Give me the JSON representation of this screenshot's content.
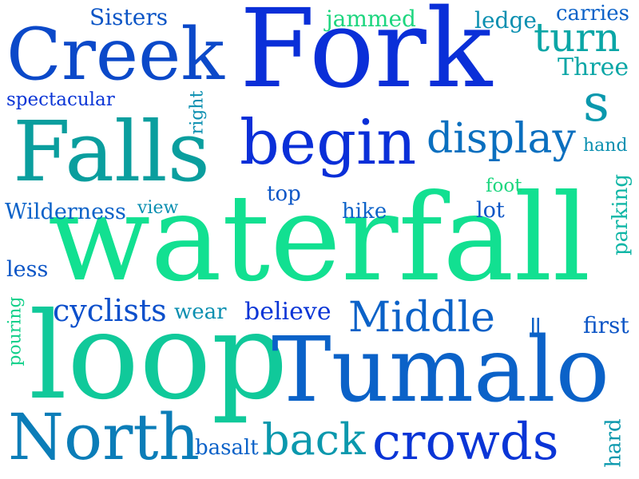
{
  "words": [
    {
      "id": "fork",
      "text": "Fork",
      "color": "#0a2fd8"
    },
    {
      "id": "creek",
      "text": "Creek",
      "color": "#0b49c9"
    },
    {
      "id": "falls",
      "text": "Falls",
      "color": "#0a9e9e"
    },
    {
      "id": "begin",
      "text": "begin",
      "color": "#0a2fd8"
    },
    {
      "id": "display",
      "text": "display",
      "color": "#0a6fbf"
    },
    {
      "id": "waterfall",
      "text": "waterfall",
      "color": "#12e091"
    },
    {
      "id": "loop",
      "text": "loop",
      "color": "#10c99a"
    },
    {
      "id": "tumalo",
      "text": "Tumalo",
      "color": "#0b62c8"
    },
    {
      "id": "north",
      "text": "North",
      "color": "#0b7db8"
    },
    {
      "id": "crowds",
      "text": "crowds",
      "color": "#0a35d6"
    },
    {
      "id": "back",
      "text": "back",
      "color": "#0a98ad"
    },
    {
      "id": "middle",
      "text": "Middle",
      "color": "#0b62c8"
    },
    {
      "id": "cyclists",
      "text": "cyclists",
      "color": "#0b4fcb"
    },
    {
      "id": "turn",
      "text": "turn",
      "color": "#0aa6a6"
    },
    {
      "id": "s",
      "text": "s",
      "color": "#0a98ad"
    },
    {
      "id": "sisters",
      "text": "Sisters",
      "color": "#0b55c6"
    },
    {
      "id": "jammed",
      "text": "jammed",
      "color": "#1dd67f"
    },
    {
      "id": "ledge",
      "text": "ledge",
      "color": "#0a8fb0"
    },
    {
      "id": "carries",
      "text": "carries",
      "color": "#0b62c8"
    },
    {
      "id": "three",
      "text": "Three",
      "color": "#0aa6a6"
    },
    {
      "id": "spectacular",
      "text": "spectacular",
      "color": "#0a35d6"
    },
    {
      "id": "right",
      "text": "right",
      "color": "#0a8fb0"
    },
    {
      "id": "hand",
      "text": "hand",
      "color": "#0a8fb0"
    },
    {
      "id": "foot",
      "text": "foot",
      "color": "#1dd67f"
    },
    {
      "id": "top",
      "text": "top",
      "color": "#0b55c6"
    },
    {
      "id": "lot",
      "text": "lot",
      "color": "#0b55c6"
    },
    {
      "id": "parking",
      "text": "parking",
      "color": "#10b6a6"
    },
    {
      "id": "wilderness",
      "text": "Wilderness",
      "color": "#0b62c8"
    },
    {
      "id": "view",
      "text": "view",
      "color": "#0a8fb0"
    },
    {
      "id": "hike",
      "text": "hike",
      "color": "#0b62c8"
    },
    {
      "id": "less",
      "text": "less",
      "color": "#0b55c6"
    },
    {
      "id": "wear",
      "text": "wear",
      "color": "#0a8fb0"
    },
    {
      "id": "believe",
      "text": "believe",
      "color": "#0a35d6"
    },
    {
      "id": "equals",
      "text": "=",
      "color": "#0b62c8"
    },
    {
      "id": "first",
      "text": "first",
      "color": "#0b55c6"
    },
    {
      "id": "pouring",
      "text": "pouring",
      "color": "#12d08a"
    },
    {
      "id": "basalt",
      "text": "basalt",
      "color": "#0b62c8"
    },
    {
      "id": "hard",
      "text": "hard",
      "color": "#0a98ad"
    }
  ]
}
